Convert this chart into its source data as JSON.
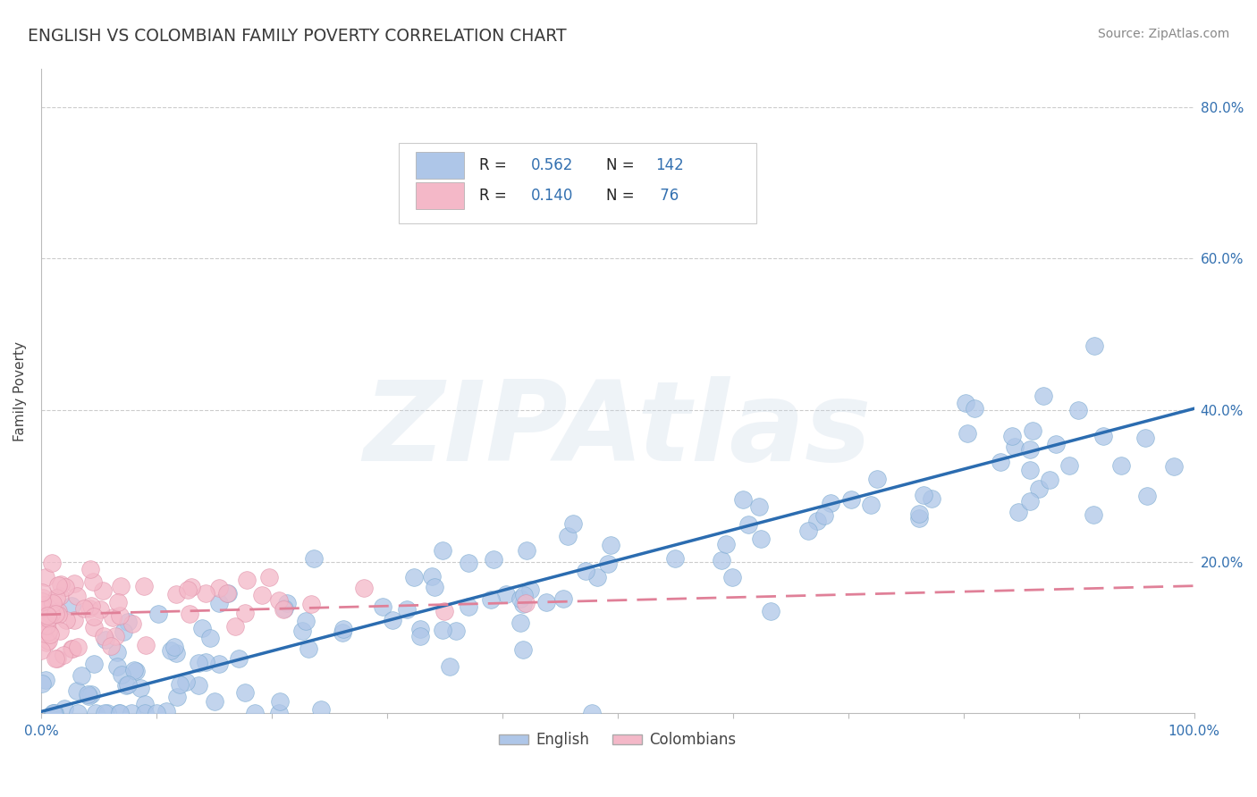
{
  "title": "ENGLISH VS COLOMBIAN FAMILY POVERTY CORRELATION CHART",
  "source_text": "Source: ZipAtlas.com",
  "ylabel": "Family Poverty",
  "xlim": [
    0.0,
    1.0
  ],
  "ylim": [
    0.0,
    0.85
  ],
  "xticks": [
    0.0,
    0.1,
    0.2,
    0.3,
    0.4,
    0.5,
    0.6,
    0.7,
    0.8,
    0.9,
    1.0
  ],
  "xticklabels": [
    "0.0%",
    "",
    "",
    "",
    "",
    "",
    "",
    "",
    "",
    "",
    "100.0%"
  ],
  "ytick_positions": [
    0.2,
    0.4,
    0.6,
    0.8
  ],
  "ytick_labels": [
    "20.0%",
    "40.0%",
    "60.0%",
    "80.0%"
  ],
  "grid_color": "#cccccc",
  "background_color": "#ffffff",
  "english_color": "#aec6e8",
  "english_edge_color": "#7aaad0",
  "english_line_color": "#2b6cb0",
  "colombian_color": "#f4b8c8",
  "colombian_edge_color": "#e090a8",
  "colombian_line_color": "#e08098",
  "legend_label_english": "English",
  "legend_label_colombian": "Colombians",
  "watermark": "ZIPAtlas",
  "title_color": "#3a3a3a",
  "axis_label_color": "#444444",
  "tick_label_color": "#3370b0",
  "legend_text_color": "#3370b0",
  "legend_r_color": "#222222",
  "english_N": 142,
  "colombian_N": 76,
  "english_intercept": 0.002,
  "english_slope": 0.4,
  "colombian_intercept": 0.13,
  "colombian_slope": 0.038
}
